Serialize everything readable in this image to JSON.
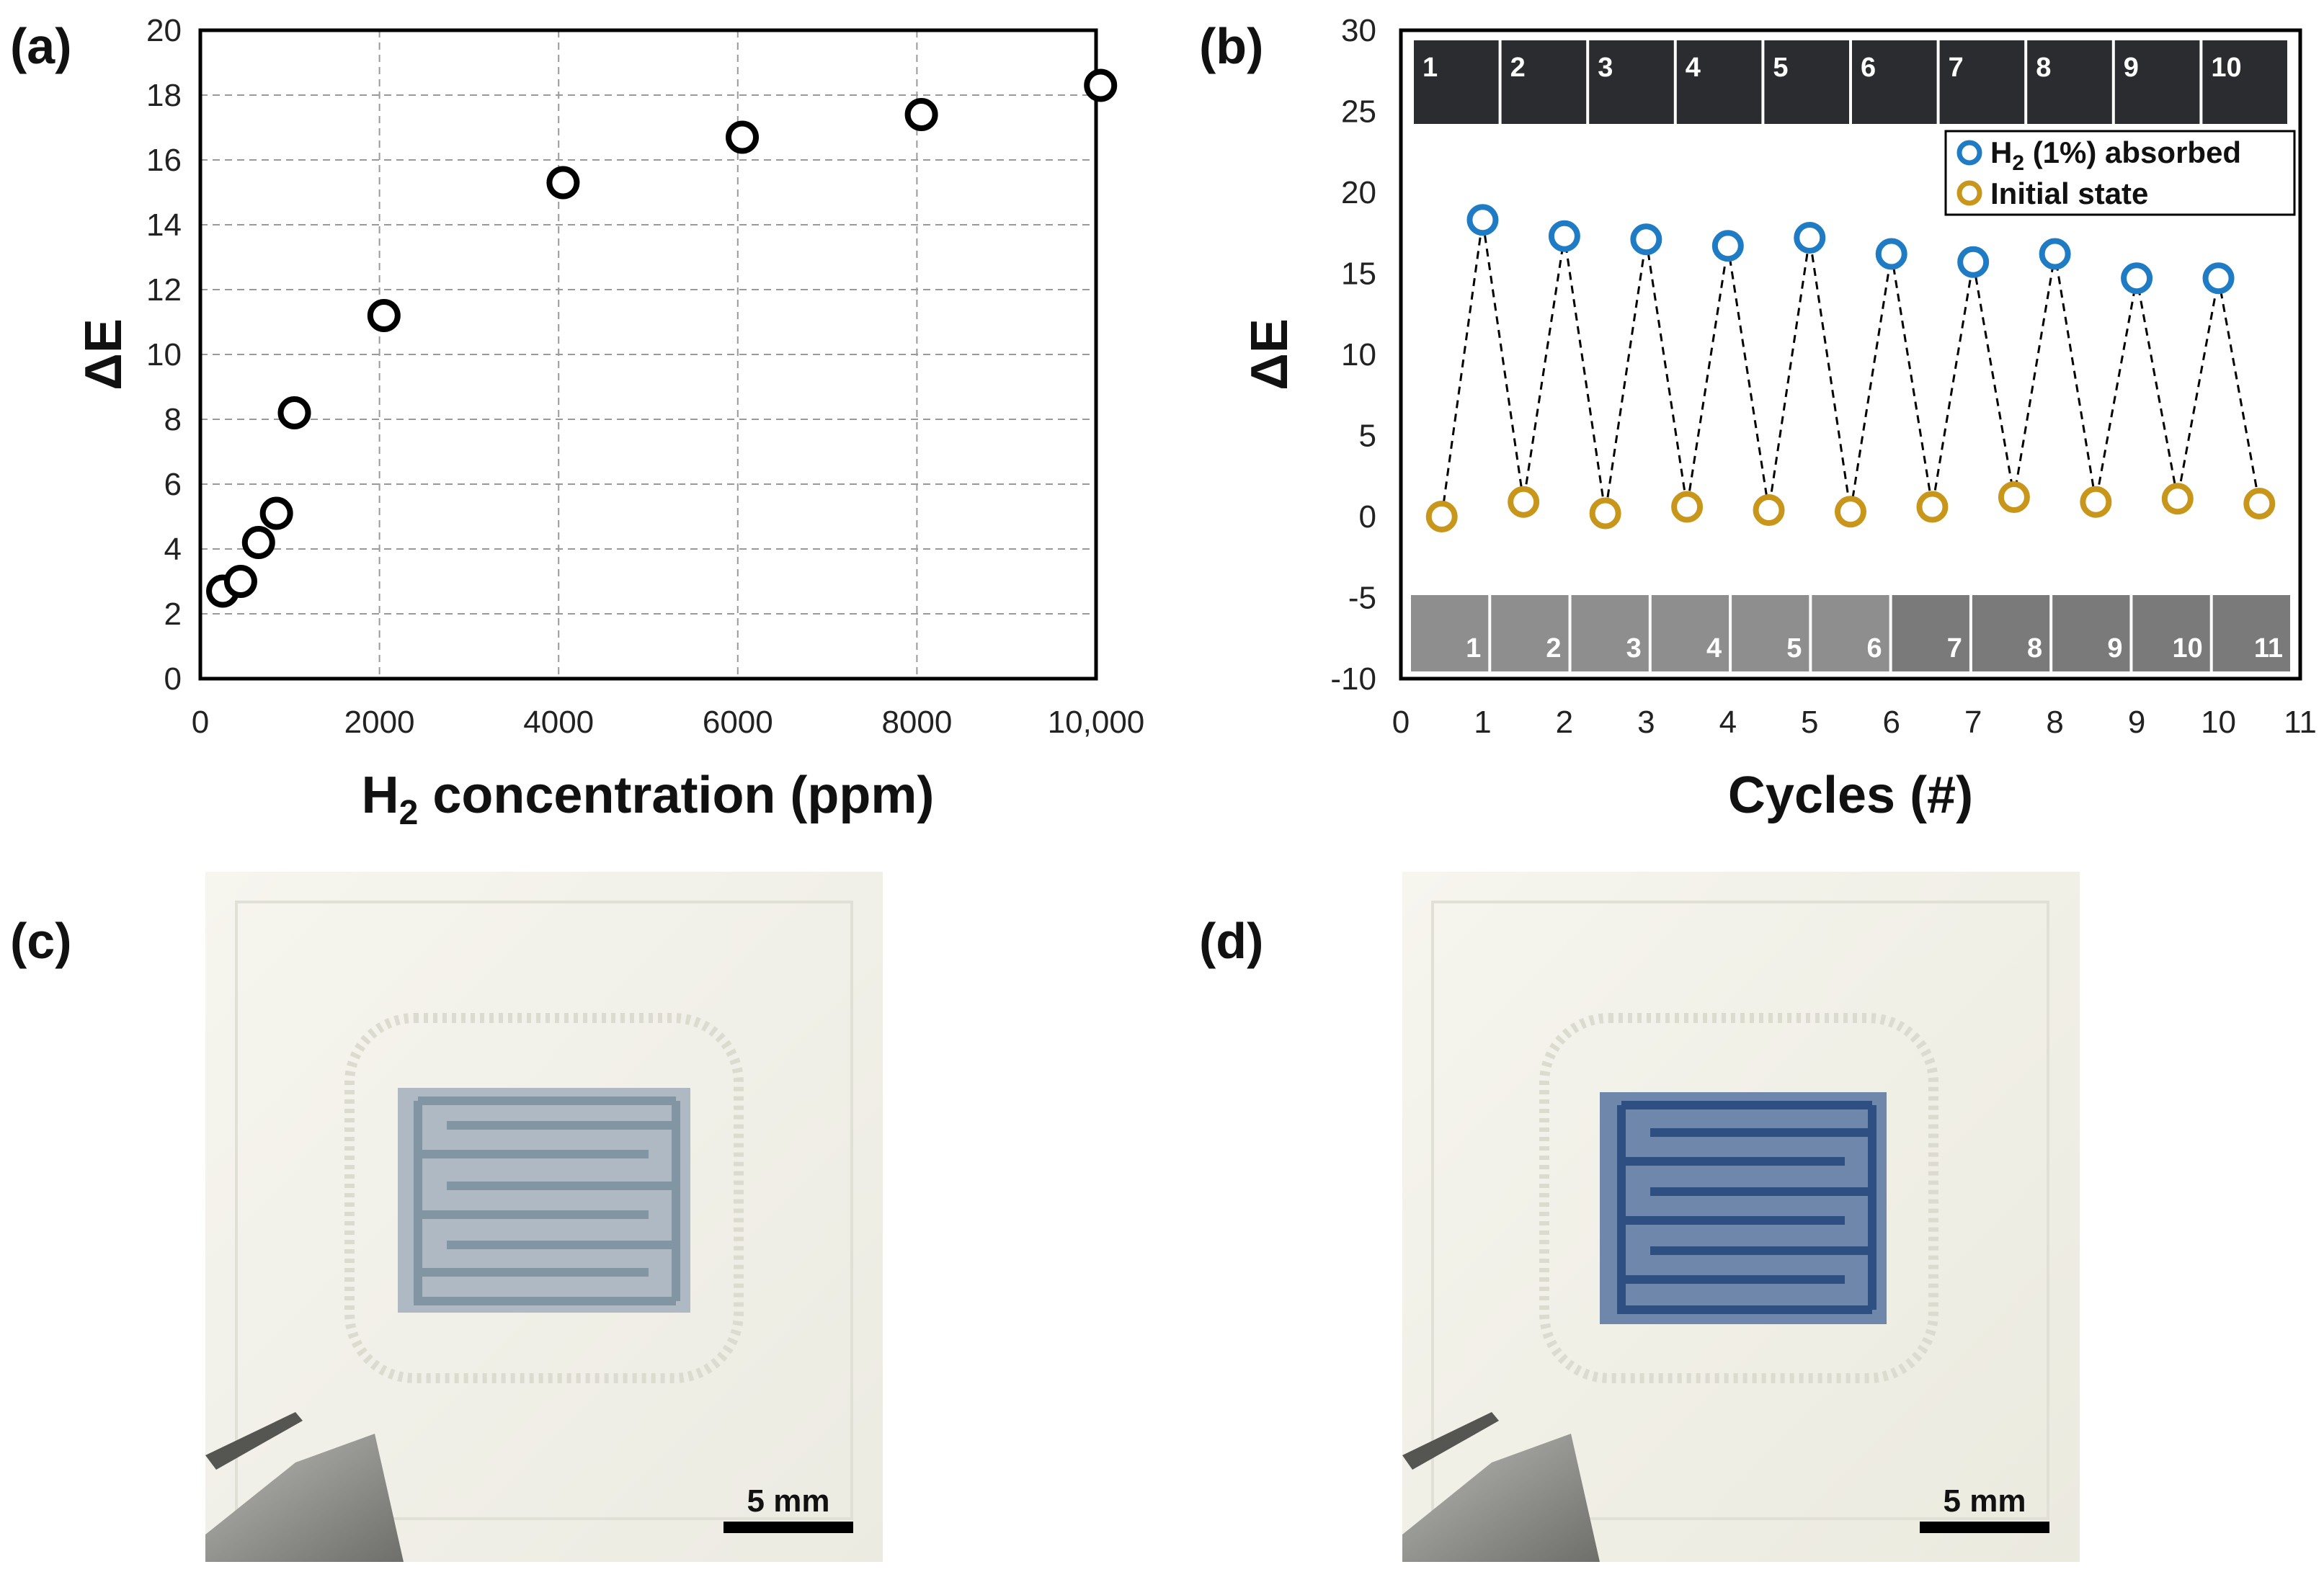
{
  "panels": {
    "a": "(a)",
    "b": "(b)",
    "c": "(c)",
    "d": "(d)"
  },
  "chart_data": [
    {
      "panel": "(a)",
      "type": "scatter",
      "ylabel": "ΔE",
      "xlabel_main": "H",
      "xlabel_sub": "2",
      "xlabel_rest": " concentration (ppm)",
      "xlim": [
        0,
        10000
      ],
      "ylim": [
        0,
        20
      ],
      "grid": true,
      "xticks": [
        0,
        2000,
        4000,
        6000,
        8000,
        10000
      ],
      "xtick_labels": [
        "0",
        "2000",
        "4000",
        "6000",
        "8000",
        "10,000"
      ],
      "yticks": [
        0,
        2,
        4,
        6,
        8,
        10,
        12,
        14,
        16,
        18,
        20
      ],
      "marker_color": "#000000",
      "points": [
        {
          "x": 250,
          "y": 2.7
        },
        {
          "x": 450,
          "y": 3.0
        },
        {
          "x": 650,
          "y": 4.2
        },
        {
          "x": 850,
          "y": 5.1
        },
        {
          "x": 1050,
          "y": 8.2
        },
        {
          "x": 2050,
          "y": 11.2
        },
        {
          "x": 4050,
          "y": 15.3
        },
        {
          "x": 6050,
          "y": 16.7
        },
        {
          "x": 8050,
          "y": 17.4
        },
        {
          "x": 10050,
          "y": 18.3
        }
      ]
    },
    {
      "panel": "(b)",
      "type": "scatter",
      "ylabel": "ΔE",
      "xlabel": "Cycles (#)",
      "xlim": [
        0,
        11
      ],
      "ylim": [
        -10,
        30
      ],
      "grid": false,
      "xticks": [
        0,
        1,
        2,
        3,
        4,
        5,
        6,
        7,
        8,
        9,
        10,
        11
      ],
      "yticks": [
        -10,
        -5,
        0,
        5,
        10,
        15,
        20,
        25,
        30
      ],
      "legend_position": "top-right",
      "series": [
        {
          "name_main": "H",
          "name_sub": "2",
          "name_rest": " (1%) absorbed",
          "color": "#1f7cc4",
          "x": [
            1,
            2,
            3,
            4,
            5,
            6,
            7,
            8,
            9,
            10
          ],
          "y": [
            18.3,
            17.3,
            17.1,
            16.7,
            17.2,
            16.2,
            15.7,
            16.2,
            14.7,
            14.7
          ]
        },
        {
          "name": "Initial state",
          "color": "#c9961c",
          "x": [
            0.5,
            1.5,
            2.5,
            3.5,
            4.5,
            5.5,
            6.5,
            7.5,
            8.5,
            9.5,
            10.5
          ],
          "y": [
            0,
            0.9,
            0.2,
            0.6,
            0.4,
            0.3,
            0.6,
            1.2,
            0.9,
            1.1,
            0.8
          ]
        }
      ],
      "top_strip_labels": [
        "1",
        "2",
        "3",
        "4",
        "5",
        "6",
        "7",
        "8",
        "9",
        "10"
      ],
      "bottom_strip_labels": [
        "1",
        "2",
        "3",
        "4",
        "5",
        "6",
        "7",
        "8",
        "9",
        "10",
        "11"
      ],
      "top_strip_color": "#2a2c2f",
      "bottom_strip_color": "#8e8e8e"
    }
  ],
  "photos": {
    "c": {
      "scale_label": "5 mm",
      "pattern_color": "#c2d0d8"
    },
    "d": {
      "scale_label": "5 mm",
      "pattern_color": "#3c5e8e"
    }
  }
}
